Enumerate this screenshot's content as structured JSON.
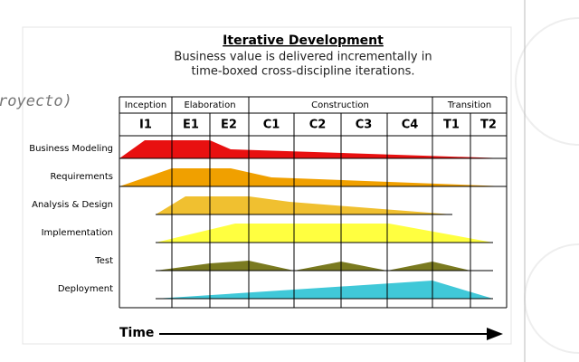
{
  "background_text": "royecto)",
  "header": {
    "title": "Iterative Development",
    "subtitle_lines": [
      "Business value is delivered incrementally in",
      "time-boxed cross-discipline iterations."
    ]
  },
  "phases": [
    {
      "label": "Inception",
      "iterations": [
        "I1"
      ]
    },
    {
      "label": "Elaboration",
      "iterations": [
        "E1",
        "E2"
      ]
    },
    {
      "label": "Construction",
      "iterations": [
        "C1",
        "C2",
        "C3",
        "C4"
      ]
    },
    {
      "label": "Transition",
      "iterations": [
        "T1",
        "T2"
      ]
    }
  ],
  "disciplines": [
    "Business Modeling",
    "Requirements",
    "Analysis & Design",
    "Implementation",
    "Test",
    "Deployment"
  ],
  "time_label": "Time"
}
